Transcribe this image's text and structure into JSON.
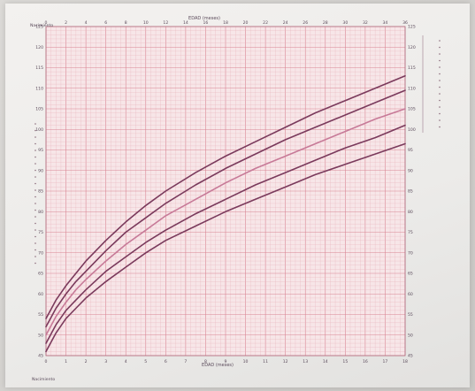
{
  "chart_data": {
    "type": "line",
    "title": "",
    "top_axis_label": "EDAD (meses)",
    "bottom_axis_label": "EDAD (meses)",
    "left_corner_label": "Nacimiento",
    "bottom_left_label": "Nacimiento",
    "x_ticks_top": [
      "0",
      "2",
      "4",
      "6",
      "8",
      "10",
      "12",
      "14",
      "16",
      "18",
      "20",
      "22",
      "24",
      "26",
      "28",
      "30",
      "32",
      "34",
      "36"
    ],
    "x_ticks_bottom": [
      "0",
      "1",
      "2",
      "3",
      "4",
      "5",
      "6",
      "7",
      "8",
      "9",
      "10",
      "11",
      "12",
      "13",
      "14",
      "15",
      "16",
      "17",
      "18"
    ],
    "xlim": [
      0,
      36
    ],
    "y_ticks_left": [
      "45",
      "50",
      "55",
      "60",
      "65",
      "70",
      "75",
      "80",
      "85",
      "90",
      "95",
      "100",
      "105",
      "110",
      "115",
      "120",
      "125"
    ],
    "y_ticks_right": [
      "45",
      "50",
      "55",
      "60",
      "65",
      "70",
      "75",
      "80",
      "85",
      "90",
      "95",
      "100",
      "105",
      "110",
      "115",
      "120",
      "125"
    ],
    "ylim": [
      45,
      125
    ],
    "grid": true,
    "series": [
      {
        "color": "#7a3a5c",
        "x": [
          0,
          1,
          2,
          3,
          4,
          6,
          8,
          10,
          12,
          15,
          18,
          21,
          24,
          27,
          30,
          33,
          36
        ],
        "y": [
          54,
          58.5,
          62,
          65,
          68,
          73,
          77.5,
          81.5,
          85,
          89.5,
          93.5,
          97,
          100.5,
          104,
          107,
          110,
          113
        ]
      },
      {
        "color": "#7a3a5c",
        "x": [
          0,
          1,
          2,
          3,
          4,
          6,
          8,
          10,
          12,
          15,
          18,
          21,
          24,
          27,
          30,
          33,
          36
        ],
        "y": [
          52,
          56.5,
          60,
          63,
          65.5,
          70.5,
          75,
          78.5,
          82,
          86.5,
          90.5,
          94,
          97.5,
          100.5,
          103.5,
          106.5,
          109.5
        ]
      },
      {
        "color": "#c77a98",
        "x": [
          0,
          1,
          2,
          3,
          4,
          6,
          8,
          10,
          12,
          15,
          18,
          21,
          24,
          27,
          30,
          33,
          36
        ],
        "y": [
          50,
          54.5,
          58,
          61,
          63.5,
          68,
          72,
          75.5,
          79,
          83,
          87,
          90.5,
          93.5,
          96.5,
          99.5,
          102.5,
          105
        ]
      },
      {
        "color": "#7a3a5c",
        "x": [
          0,
          1,
          2,
          3,
          4,
          6,
          8,
          10,
          12,
          15,
          18,
          21,
          24,
          27,
          30,
          33,
          36
        ],
        "y": [
          48,
          52.5,
          56,
          58.5,
          61,
          65.5,
          69,
          72.5,
          75.5,
          79.5,
          83,
          86.5,
          89.5,
          92.5,
          95.5,
          98,
          101
        ]
      },
      {
        "color": "#7a3a5c",
        "x": [
          0,
          1,
          2,
          3,
          4,
          6,
          8,
          10,
          12,
          15,
          18,
          21,
          24,
          27,
          30,
          33,
          36
        ],
        "y": [
          46,
          50.5,
          54,
          56.5,
          59,
          63,
          66.5,
          70,
          73,
          76.5,
          80,
          83,
          86,
          89,
          91.5,
          94,
          96.5
        ]
      }
    ]
  },
  "colors": {
    "grid_minor": "#e8b3bc",
    "grid_major": "#d98594",
    "axis_text": "#5a4a5a"
  }
}
